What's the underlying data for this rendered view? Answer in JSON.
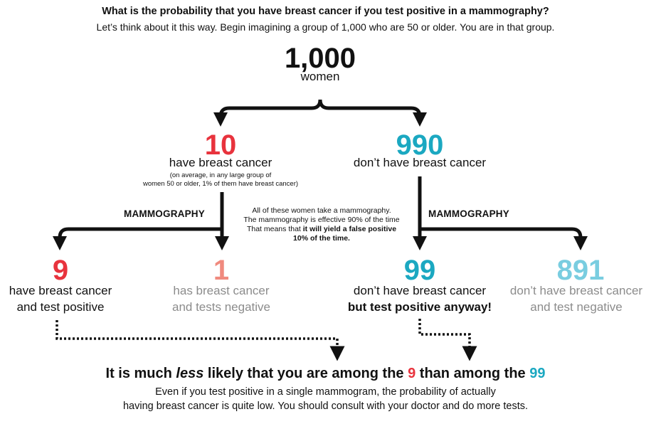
{
  "header": {
    "question": "What is the probability that you have breast cancer if you test positive in a mammography?",
    "intro": "Let’s think about it this way. Begin imagining a group of 1,000 who are 50 or older. You are in that group."
  },
  "root": {
    "number": "1,000",
    "label": "women"
  },
  "cancer": {
    "number": "10",
    "label": "have breast cancer",
    "note_line1": "(on average, in any large group of",
    "note_line2": "women 50 or older, 1% of them have breast cancer)"
  },
  "no_cancer": {
    "number": "990",
    "label": "don’t have breast cancer"
  },
  "mammography_label_left": "MAMMOGRAPHY",
  "mammography_label_right": "MAMMOGRAPHY",
  "middle_note": {
    "line1": "All of these women take a mammography.",
    "line2": "The mammography is effective 90% of the time",
    "line3_prefix": "That means that ",
    "line3_bold": "it will yield a false positive",
    "line4_bold": "10% of the time."
  },
  "leaves": {
    "true_positive": {
      "number": "9",
      "line1": "have breast cancer",
      "line2": "and test positive"
    },
    "false_negative": {
      "number": "1",
      "line1": "has breast cancer",
      "line2": "and tests negative"
    },
    "false_positive": {
      "number": "99",
      "line1": "don’t have breast cancer",
      "line2": "but test positive anyway!"
    },
    "true_negative": {
      "number": "891",
      "line1": "don’t have breast cancer",
      "line2": "and test negative"
    }
  },
  "conclusion": {
    "head_part1": "It is much ",
    "head_emphasis": "less",
    "head_part2": " likely that you are among the ",
    "head_num1": "9",
    "head_part3": " than among the ",
    "head_num2": "99",
    "line1": "Even if you test positive in a single mammogram, the probability of actually",
    "line2": "having breast cancer is quite low. You should consult with your doctor and do more tests."
  },
  "colors": {
    "red": "#e8333d",
    "teal": "#1ba8c1",
    "pink": "#f08a7e",
    "light_teal": "#79cde0",
    "grey": "#8c8c8c",
    "arrow": "#111111"
  }
}
